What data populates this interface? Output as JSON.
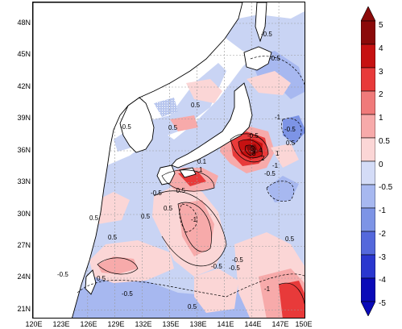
{
  "map": {
    "lat_labels": [
      "48N",
      "45N",
      "42N",
      "39N",
      "36N",
      "33N",
      "30N",
      "27N",
      "24N",
      "21N"
    ],
    "lon_labels": [
      "120E",
      "123E",
      "126E",
      "129E",
      "132E",
      "135E",
      "138E",
      "141E",
      "144E",
      "147E",
      "150E"
    ],
    "contour_labels": [
      {
        "text": "-0.5"
      },
      {
        "text": "-0.5"
      },
      {
        "text": "-1"
      },
      {
        "text": "-0.5"
      },
      {
        "text": "0.5"
      },
      {
        "text": "-0.5"
      },
      {
        "text": "0.5"
      },
      {
        "text": "-0.5"
      },
      {
        "text": "0.5"
      },
      {
        "text": "1"
      },
      {
        "text": "2"
      },
      {
        "text": "3"
      },
      {
        "text": "4"
      },
      {
        "text": "5"
      },
      {
        "text": "-0.5"
      },
      {
        "text": "-1"
      },
      {
        "text": "-0.5"
      },
      {
        "text": "1"
      },
      {
        "text": "0.1"
      },
      {
        "text": "0.5"
      },
      {
        "text": "-0.5"
      },
      {
        "text": "-1"
      },
      {
        "text": "0.5"
      },
      {
        "text": "0.5"
      },
      {
        "text": "-0.5"
      },
      {
        "text": "0.5"
      },
      {
        "text": "-0.5"
      },
      {
        "text": "-0.5"
      },
      {
        "text": "-0.5"
      },
      {
        "text": "-0.5"
      },
      {
        "text": "0.5"
      },
      {
        "text": "-1"
      },
      {
        "text": "0.5"
      },
      {
        "text": "0.5"
      }
    ]
  },
  "colorbar": {
    "labels": [
      "5",
      "4",
      "3",
      "2",
      "1",
      "0.5",
      "0",
      "-0.5",
      "-1",
      "-2",
      "-3",
      "-4",
      "-5"
    ],
    "colors": [
      "#8b0a0a",
      "#c61111",
      "#e83a3a",
      "#f07a7a",
      "#f7aaaa",
      "#fbd6d6",
      "#ffffff",
      "#d4dcf7",
      "#a7b8f0",
      "#7d94e6",
      "#5468dc",
      "#2a37cf",
      "#0a0ab8"
    ]
  }
}
